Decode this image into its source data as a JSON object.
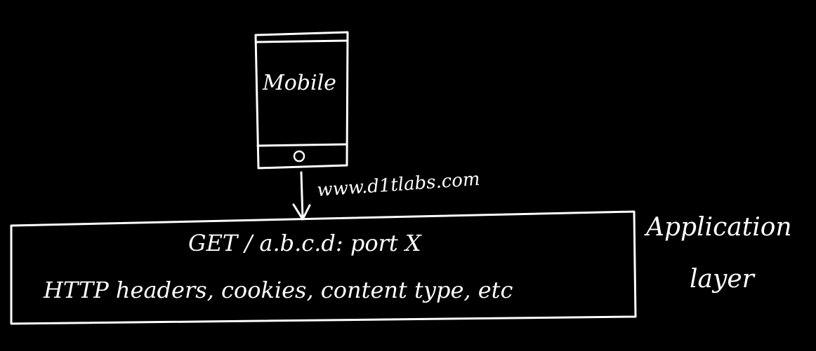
{
  "mobile": {
    "label": "Mobile"
  },
  "request": {
    "url": "www.d1tlabs.com",
    "line1": "GET /  a.b.c.d: port X",
    "line2": "HTTP headers, cookies, content type, etc"
  },
  "layer": {
    "line1": "Application",
    "line2": "layer"
  },
  "colors": {
    "background": "#000000",
    "ink": "#ffffff"
  }
}
